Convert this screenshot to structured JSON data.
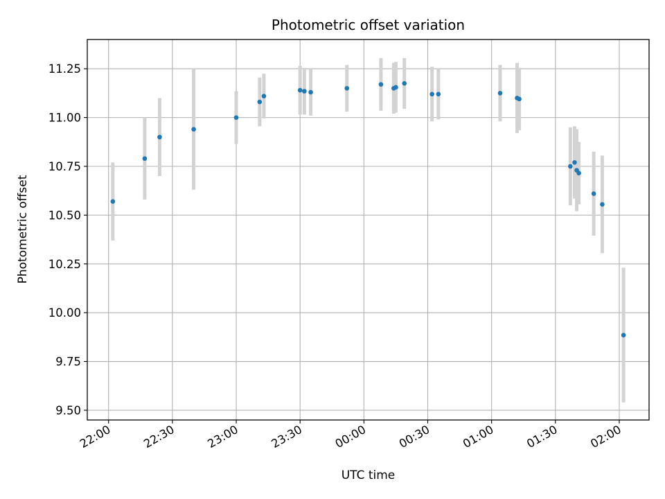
{
  "chart_data": {
    "type": "scatter",
    "title": "Photometric offset variation",
    "xlabel": "UTC time",
    "ylabel": "Photometric offset",
    "grid": true,
    "xlim": [
      "21:50",
      "02:14"
    ],
    "ylim": [
      9.45,
      11.4
    ],
    "x_ticks": [
      "22:00",
      "22:30",
      "23:00",
      "23:30",
      "00:00",
      "00:30",
      "01:00",
      "01:30",
      "02:00"
    ],
    "y_ticks": [
      "9.50",
      "9.75",
      "10.00",
      "10.25",
      "10.50",
      "10.75",
      "11.00",
      "11.25"
    ],
    "marker_color": "#1f77b4",
    "errorbar_color": "#d3d3d3",
    "series": [
      {
        "x": [
          "22:02",
          "22:17",
          "22:24",
          "22:40",
          "23:00",
          "23:11",
          "23:13",
          "23:30",
          "23:32",
          "23:35",
          "23:52",
          "00:08",
          "00:14",
          "00:15",
          "00:19",
          "00:32",
          "00:35",
          "01:04",
          "01:12",
          "01:13",
          "01:37",
          "01:39",
          "01:40",
          "01:41",
          "01:48",
          "01:52",
          "02:02"
        ],
        "y": [
          10.57,
          10.79,
          10.9,
          10.94,
          11.0,
          11.08,
          11.11,
          11.14,
          11.135,
          11.13,
          11.15,
          11.17,
          11.15,
          11.155,
          11.175,
          11.12,
          11.12,
          11.125,
          11.1,
          11.095,
          10.75,
          10.77,
          10.73,
          10.715,
          10.61,
          10.555,
          9.885
        ],
        "yerr": [
          0.2,
          0.21,
          0.2,
          0.31,
          0.135,
          0.125,
          0.115,
          0.125,
          0.12,
          0.12,
          0.12,
          0.135,
          0.13,
          0.13,
          0.13,
          0.14,
          0.13,
          0.145,
          0.18,
          0.16,
          0.2,
          0.185,
          0.21,
          0.16,
          0.215,
          0.25,
          0.345
        ]
      }
    ]
  }
}
